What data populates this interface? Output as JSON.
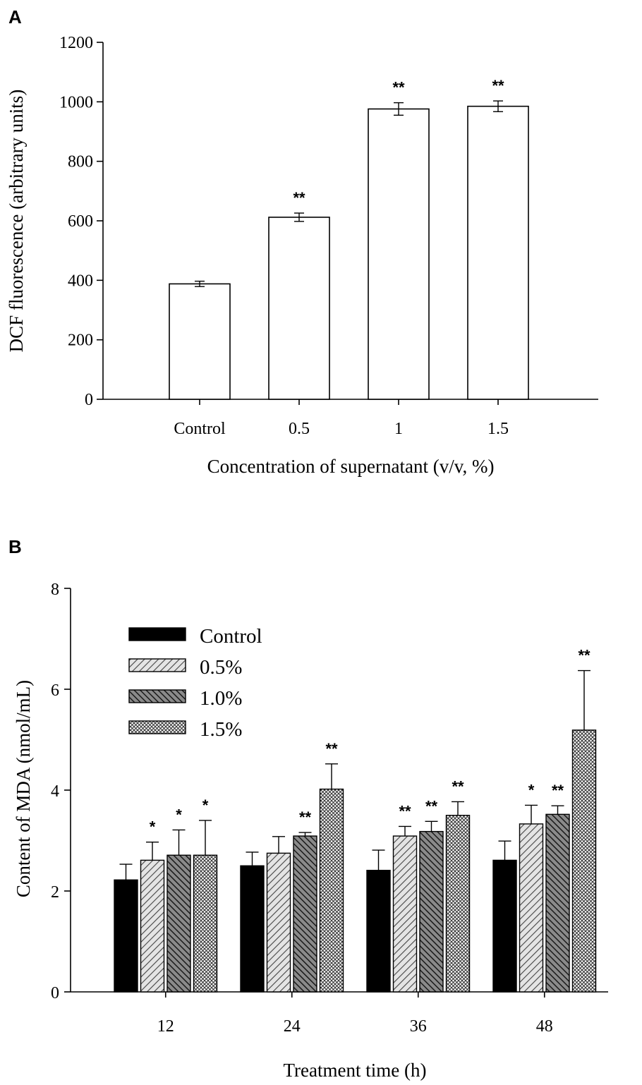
{
  "panels": {
    "a_letter": "A",
    "b_letter": "B"
  },
  "chart_data": [
    {
      "type": "bar",
      "panel": "A",
      "categories": [
        "Control",
        "0.5",
        "1",
        "1.5"
      ],
      "values": [
        388,
        612,
        976,
        985
      ],
      "errors": [
        9,
        14,
        21,
        18
      ],
      "significance": [
        "",
        "**",
        "**",
        "**"
      ],
      "xlabel": "Concentration of supernatant (v/v, %)",
      "ylabel": "DCF fluorescence (arbitrary units)",
      "ylim": [
        0,
        1200
      ],
      "yticks": [
        "0",
        "200",
        "400",
        "600",
        "800",
        "1000",
        "1200"
      ]
    },
    {
      "type": "bar",
      "panel": "B",
      "categories": [
        "12",
        "24",
        "36",
        "48"
      ],
      "series": [
        {
          "name": "Control",
          "pattern": "solid",
          "values": [
            2.22,
            2.5,
            2.41,
            2.61
          ],
          "errors": [
            0.31,
            0.27,
            0.4,
            0.38
          ],
          "significance": [
            "",
            "",
            "",
            ""
          ]
        },
        {
          "name": "0.5%",
          "pattern": "light-diagonal",
          "values": [
            2.61,
            2.75,
            3.09,
            3.33
          ],
          "errors": [
            0.36,
            0.33,
            0.19,
            0.37
          ],
          "significance": [
            "*",
            "",
            "**",
            "*"
          ]
        },
        {
          "name": "1.0%",
          "pattern": "dark-diagonal",
          "values": [
            2.71,
            3.09,
            3.18,
            3.52
          ],
          "errors": [
            0.5,
            0.07,
            0.2,
            0.17
          ],
          "significance": [
            "*",
            "**",
            "**",
            "**"
          ]
        },
        {
          "name": "1.5%",
          "pattern": "crosshatch",
          "values": [
            2.71,
            4.02,
            3.5,
            5.19
          ],
          "errors": [
            0.69,
            0.5,
            0.27,
            1.18
          ],
          "significance": [
            "*",
            "**",
            "**",
            "**"
          ]
        }
      ],
      "xlabel": "Treatment time (h)",
      "ylabel": "Content of MDA (nmol/mL)",
      "ylim": [
        0,
        8
      ],
      "yticks": [
        "0",
        "2",
        "4",
        "6",
        "8"
      ],
      "legend_position": "top-left"
    }
  ]
}
